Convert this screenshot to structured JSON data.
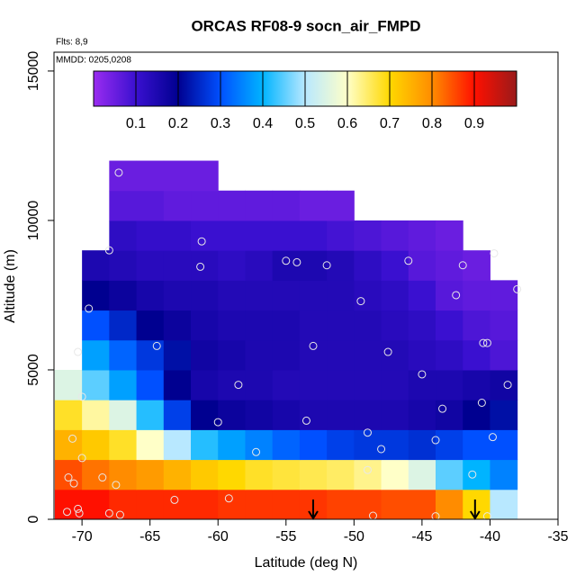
{
  "chart_data": {
    "type": "heatmap",
    "title": "ORCAS RF08-9 socn_air_FMPD",
    "annotations": [
      "Flts: 8,9",
      "MMDD: 0205,0208"
    ],
    "xlabel": "Latitude (deg N)",
    "ylabel": "Altitude (m)",
    "xlim": [
      -72.06,
      -35
    ],
    "ylim": [
      0,
      15630
    ],
    "xticks": [
      -70,
      -65,
      -60,
      -55,
      -50,
      -45,
      -40,
      -35
    ],
    "yticks": [
      0,
      5000,
      10000,
      15000
    ],
    "x": [
      -71,
      -69,
      -67,
      -65,
      -63,
      -61,
      -59,
      -57,
      -55,
      -53,
      -51,
      -49,
      -47,
      -45,
      -43,
      -41,
      -39
    ],
    "y": [
      500,
      1500,
      2500,
      3500,
      4500,
      5500,
      6500,
      7500,
      8500,
      9500,
      10500,
      11500
    ],
    "z": [
      [
        0.9,
        0.9,
        0.88,
        0.88,
        0.88,
        0.88,
        0.87,
        0.87,
        0.87,
        0.87,
        0.86,
        0.86,
        0.85,
        0.85,
        0.8,
        0.7,
        0.5
      ],
      [
        0.85,
        0.82,
        0.8,
        0.78,
        0.75,
        0.72,
        0.7,
        0.68,
        0.67,
        0.66,
        0.65,
        0.63,
        0.6,
        0.55,
        0.45,
        0.4,
        0.35
      ],
      [
        0.75,
        0.72,
        0.68,
        0.6,
        0.5,
        0.42,
        0.38,
        0.35,
        0.32,
        0.3,
        0.28,
        0.27,
        0.27,
        0.26,
        0.28,
        0.3,
        0.3
      ],
      [
        0.68,
        0.62,
        0.55,
        0.42,
        0.28,
        0.2,
        0.18,
        0.17,
        0.16,
        0.15,
        0.15,
        0.15,
        0.15,
        0.16,
        0.17,
        0.2,
        0.22
      ],
      [
        0.55,
        0.45,
        0.38,
        0.3,
        0.2,
        0.16,
        0.15,
        0.15,
        0.14,
        0.14,
        0.14,
        0.14,
        0.14,
        0.15,
        0.15,
        0.16,
        0.17
      ],
      [
        null,
        0.38,
        0.32,
        0.27,
        0.22,
        0.17,
        0.16,
        0.15,
        0.15,
        0.14,
        0.14,
        0.14,
        0.14,
        0.13,
        0.12,
        0.1,
        0.08
      ],
      [
        null,
        0.3,
        0.25,
        0.2,
        0.18,
        0.16,
        0.15,
        0.15,
        0.15,
        0.14,
        0.14,
        0.14,
        0.13,
        0.12,
        0.1,
        0.08,
        0.07
      ],
      [
        null,
        0.2,
        0.18,
        0.16,
        0.15,
        0.15,
        0.14,
        0.14,
        0.14,
        0.14,
        0.14,
        0.13,
        0.12,
        0.1,
        0.07,
        0.06,
        0.06
      ],
      [
        null,
        0.15,
        0.14,
        0.13,
        0.13,
        0.13,
        0.12,
        0.13,
        0.15,
        0.15,
        0.14,
        0.12,
        0.1,
        0.07,
        0.06,
        0.05,
        null
      ],
      [
        null,
        null,
        0.12,
        0.11,
        0.11,
        0.1,
        0.1,
        0.1,
        0.1,
        0.1,
        0.09,
        0.08,
        0.07,
        0.06,
        0.05,
        null,
        null
      ],
      [
        null,
        null,
        0.07,
        0.07,
        0.06,
        0.06,
        0.06,
        0.06,
        0.06,
        0.05,
        0.05,
        null,
        null,
        null,
        null,
        null,
        null
      ],
      [
        null,
        null,
        0.05,
        0.05,
        0.05,
        0.05,
        null,
        null,
        null,
        null,
        null,
        null,
        null,
        null,
        null,
        null,
        null
      ]
    ],
    "colorbar": {
      "lim": [
        0,
        1
      ],
      "ticks": [
        0.1,
        0.2,
        0.3,
        0.4,
        0.5,
        0.6,
        0.7,
        0.8,
        0.9
      ],
      "colors": [
        "#9a2cf0",
        "#3a10d0",
        "#000090",
        "#0050ff",
        "#00b4ff",
        "#b8e8ff",
        "#ffffc8",
        "#ffd800",
        "#ff8c00",
        "#ff1000",
        "#9a1a1a"
      ]
    },
    "points": {
      "x": [
        -67.3,
        -68,
        -61.2,
        -61.3,
        -55,
        -54.2,
        -52,
        -49.5,
        -46,
        -42.5,
        -42,
        -39.7,
        -38,
        -69.5,
        -64.5,
        -53,
        -47.5,
        -45,
        -40.5,
        -40.2,
        -38.7,
        -70.3,
        -58.5,
        -70,
        -60,
        -53.5,
        -43.5,
        -40.6,
        -39.8,
        -70.7,
        -70,
        -57.2,
        -49,
        -48,
        -44,
        -71,
        -70.6,
        -68.5,
        -67.5,
        -49,
        -41.3,
        -63.2,
        -59.2,
        -70.3,
        -70.2,
        -68,
        -67.2,
        -71.1,
        -48.6,
        -44,
        -40.2
      ],
      "y": [
        11600,
        9000,
        9300,
        8450,
        8650,
        8600,
        8500,
        7300,
        8650,
        7500,
        8500,
        8900,
        7700,
        7050,
        5800,
        5800,
        5600,
        4850,
        5900,
        5900,
        4500,
        5600,
        4500,
        4100,
        3250,
        3300,
        3700,
        3900,
        2750,
        2700,
        2050,
        2250,
        2900,
        2350,
        2650,
        1400,
        1200,
        1400,
        1150,
        1650,
        1500,
        650,
        700,
        350,
        200,
        200,
        150,
        250,
        120,
        100,
        100
      ]
    },
    "arrows": {
      "x": [
        -53,
        -41.1
      ]
    }
  }
}
